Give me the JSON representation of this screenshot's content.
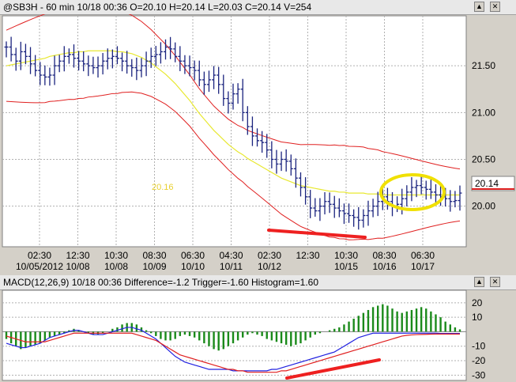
{
  "price_pane": {
    "title": "@SB3H - 60 min 10/18 00:36 O=20.10 H=20.14 L=20.03 C=20.14 V=254",
    "last_price_label": "20.14",
    "annotation_text": "20.16",
    "up_icon": "▲",
    "close_icon": "✕"
  },
  "macd_pane": {
    "title": "MACD(12,26,9) 10/18 00:36 Difference=-1.2 Trigger=-1.60 Histogram=1.60",
    "up_icon": "▲",
    "close_icon": "✕"
  },
  "colors": {
    "price_bars": "#1a237e",
    "moving_average": "#e8e830",
    "bands": "#e02020",
    "histogram": "#1a8a1a",
    "macd_line": "#2020e0",
    "trigger_line": "#e02020",
    "annotation_red": "#ee2020",
    "annotation_circle": "#f0e000"
  },
  "chart_data": [
    {
      "type": "bar",
      "title": "@SB3H - 60 min 10/18 00:36 O=20.10 H=20.14 L=20.03 C=20.14 V=254",
      "ylim": [
        19.6,
        22.0
      ],
      "y_ticks": [
        "21.50",
        "21.00",
        "20.50",
        "20.00"
      ],
      "y_tick_values": [
        21.5,
        21.0,
        20.5,
        20.0
      ],
      "x_tick_labels": [
        {
          "time": "02:30",
          "date": "10/05/2012"
        },
        {
          "time": "12:30",
          "date": "10/08"
        },
        {
          "time": "10:30",
          "date": "10/08"
        },
        {
          "time": "08:30",
          "date": "10/09"
        },
        {
          "time": "06:30",
          "date": "10/10"
        },
        {
          "time": "04:30",
          "date": "10/11"
        },
        {
          "time": "02:30",
          "date": "10/12"
        },
        {
          "time": "12:30",
          "date": ""
        },
        {
          "time": "10:30",
          "date": "10/15"
        },
        {
          "time": "08:30",
          "date": "10/16"
        },
        {
          "time": "06:30",
          "date": "10/17"
        }
      ],
      "grid": true,
      "series": [
        {
          "values_close": [
            21.7,
            21.62,
            21.55,
            21.65,
            21.6,
            21.52,
            21.45,
            21.4,
            21.38,
            21.4,
            21.5,
            21.55,
            21.6,
            21.62,
            21.58,
            21.55,
            21.52,
            21.5,
            21.48,
            21.5,
            21.55,
            21.58,
            21.6,
            21.58,
            21.55,
            21.5,
            21.48,
            21.45,
            21.5,
            21.55,
            21.6,
            21.62,
            21.65,
            21.7,
            21.68,
            21.6,
            21.55,
            21.5,
            21.48,
            21.45,
            21.35,
            21.3,
            21.35,
            21.4,
            21.3,
            21.15,
            21.1,
            21.2,
            21.25,
            21.0,
            20.85,
            20.75,
            20.7,
            20.68,
            20.6,
            20.5,
            20.45,
            20.5,
            20.48,
            20.4,
            20.3,
            20.2,
            20.1,
            19.98,
            19.95,
            20.0,
            20.05,
            20.02,
            19.98,
            19.95,
            19.92,
            19.9,
            19.88,
            19.85,
            19.9,
            19.95,
            20.0,
            20.05,
            20.1,
            20.05,
            20.0,
            20.02,
            20.08,
            20.15,
            20.2,
            20.22,
            20.2,
            20.18,
            20.15,
            20.12,
            20.1,
            20.08,
            20.05,
            20.06,
            20.14
          ]
        },
        {
          "values_average": [
            21.5,
            21.51,
            21.52,
            21.53,
            21.54,
            21.55,
            21.56,
            21.57,
            21.58,
            21.6,
            21.61,
            21.62,
            21.63,
            21.64,
            21.64,
            21.65,
            21.65,
            21.66,
            21.66,
            21.66,
            21.66,
            21.66,
            21.66,
            21.65,
            21.65,
            21.64,
            21.63,
            21.61,
            21.59,
            21.56,
            21.53,
            21.49,
            21.45,
            21.41,
            21.36,
            21.31,
            21.25,
            21.19,
            21.13,
            21.06,
            20.99,
            20.93,
            20.87,
            20.81,
            20.76,
            20.71,
            20.66,
            20.62,
            20.58,
            20.55,
            20.51,
            20.48,
            20.45,
            20.42,
            20.39,
            20.36,
            20.33,
            20.3,
            20.28,
            20.26,
            20.24,
            20.22,
            20.21,
            20.2,
            20.19,
            20.18,
            20.17,
            20.16,
            20.16,
            20.15,
            20.15,
            20.14,
            20.14,
            20.14,
            20.14,
            20.13,
            20.13,
            20.13,
            20.12,
            20.12,
            20.12,
            20.12,
            20.12,
            20.12,
            20.12,
            20.12,
            20.12,
            20.12,
            20.12,
            20.12,
            20.12,
            20.12,
            20.12,
            20.12,
            20.12
          ]
        }
      ]
    },
    {
      "type": "bar",
      "title": "MACD(12,26,9) 10/18 00:36 Difference=-1.2 Trigger=-1.60 Histogram=1.60",
      "ylim": [
        -32,
        27
      ],
      "y_ticks": [
        "20",
        "10",
        "-10",
        "-20",
        "-30"
      ],
      "y_tick_values": [
        20,
        10,
        -10,
        -20,
        -30
      ],
      "series": [
        {
          "histogram": [
            -5,
            -8,
            -10,
            -12,
            -11,
            -10,
            -9,
            -8,
            -6,
            -4,
            -3,
            -2,
            -1,
            1,
            2,
            1,
            0,
            -1,
            -2,
            -2,
            -1,
            0,
            2,
            3,
            5,
            6,
            6,
            5,
            3,
            1,
            -1,
            -3,
            -5,
            -6,
            -6,
            -5,
            -3,
            -2,
            -3,
            -4,
            -6,
            -8,
            -10,
            -12,
            -13,
            -12,
            -10,
            -8,
            -6,
            -4,
            -2,
            -1,
            -2,
            -3,
            -5,
            -6,
            -7,
            -8,
            -9,
            -10,
            -9,
            -8,
            -6,
            -4,
            -2,
            -1,
            0,
            1,
            2,
            3,
            5,
            7,
            9,
            11,
            13,
            15,
            17,
            18,
            19,
            18,
            16,
            14,
            13,
            14,
            15,
            16,
            17,
            16,
            14,
            12,
            10,
            7,
            5,
            3,
            1.6
          ]
        },
        {
          "macd": [
            -8,
            -9,
            -10,
            -11,
            -11,
            -10,
            -9,
            -8,
            -6,
            -4,
            -3,
            -2,
            -1,
            0,
            1,
            1,
            0,
            -1,
            -2,
            -2,
            -2,
            -1,
            0,
            1,
            2,
            3,
            3,
            2,
            1,
            -1,
            -3,
            -5,
            -8,
            -11,
            -14,
            -17,
            -19,
            -21,
            -22,
            -23,
            -24,
            -25,
            -26,
            -26,
            -26,
            -26,
            -26,
            -27,
            -27,
            -27,
            -27,
            -27,
            -27,
            -27,
            -27,
            -26,
            -26,
            -25,
            -24,
            -23,
            -22,
            -21,
            -20,
            -19,
            -18,
            -17,
            -16,
            -15,
            -14,
            -12,
            -10,
            -8,
            -6,
            -4,
            -3,
            -2,
            -1,
            -1,
            -1,
            -1,
            -1,
            -1,
            -1,
            -1,
            -1,
            -1,
            -1,
            -1,
            -1,
            -1,
            -1.2,
            -1.2,
            -1.2,
            -1.2,
            -1.2
          ]
        },
        {
          "trigger": [
            -3,
            -4,
            -5,
            -6,
            -7,
            -7,
            -7,
            -7,
            -7,
            -6,
            -5,
            -4,
            -3,
            -2,
            -1,
            -1,
            -1,
            -1,
            -1,
            -1,
            -1,
            -1,
            -1,
            -1,
            -1,
            -1,
            -1,
            -2,
            -3,
            -4,
            -5,
            -6,
            -8,
            -10,
            -12,
            -14,
            -16,
            -17,
            -18,
            -19,
            -20,
            -21,
            -22,
            -23,
            -24,
            -25,
            -26,
            -26,
            -27,
            -27,
            -28,
            -28,
            -28,
            -28,
            -28,
            -28,
            -28,
            -27,
            -27,
            -26,
            -25,
            -24,
            -23,
            -22,
            -21,
            -20,
            -19,
            -18,
            -17,
            -16,
            -15,
            -14,
            -13,
            -12,
            -11,
            -10,
            -9,
            -8,
            -7,
            -6,
            -5,
            -4,
            -3,
            -2.5,
            -2.2,
            -2,
            -1.9,
            -1.8,
            -1.7,
            -1.6,
            -1.6,
            -1.6,
            -1.6,
            -1.6,
            -1.6
          ]
        }
      ]
    }
  ]
}
